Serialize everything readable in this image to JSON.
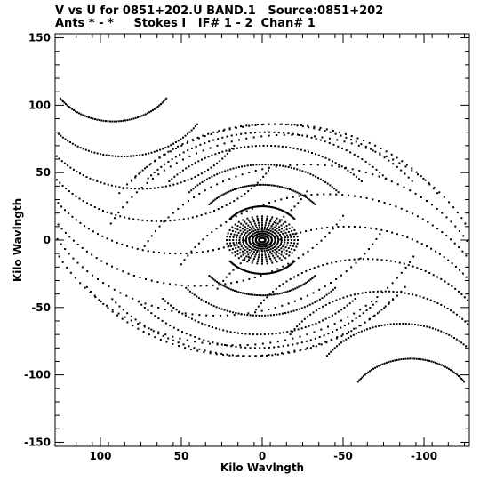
{
  "title_line1": "V vs U for 0851+202.U BAND.1   Source:0851+202",
  "title_line2": "Ants * - *     Stokes I   IF# 1 - 2  Chan# 1",
  "chart_data": {
    "type": "scatter",
    "xlabel": "Kilo Wavlngth",
    "ylabel": "Kilo Wavlngth",
    "xlim": [
      128,
      -128
    ],
    "ylim": [
      -153,
      153
    ],
    "x_reversed": true,
    "grid": false,
    "marker_color": "#000000",
    "xticks": [
      100,
      50,
      0,
      -50,
      -100
    ],
    "xtick_labels": [
      "100",
      "50",
      "0",
      "-50",
      "-100"
    ],
    "yticks": [
      150,
      100,
      50,
      0,
      -50,
      -100,
      -150
    ],
    "ytick_labels": [
      "150",
      "100",
      "50",
      "0",
      "-50",
      "-100",
      "-150"
    ],
    "tracks": [
      {
        "cx": 92,
        "cy": 128,
        "r": 40,
        "a1": 215,
        "a2": 325
      },
      {
        "cx": 86,
        "cy": 118,
        "r": 56,
        "a1": 215,
        "a2": 325
      },
      {
        "cx": 75,
        "cy": 106,
        "r": 68,
        "a1": 212,
        "a2": 328
      },
      {
        "cx": 64,
        "cy": 94,
        "r": 80,
        "a1": 212,
        "a2": 328
      },
      {
        "cx": 52,
        "cy": 82,
        "r": 92,
        "a1": 210,
        "a2": 330
      },
      {
        "cx": 40,
        "cy": 70,
        "r": 104,
        "a1": 210,
        "a2": 330
      },
      {
        "cx": 28,
        "cy": 58,
        "r": 114,
        "a1": 208,
        "a2": 332
      },
      {
        "cx": 16,
        "cy": 46,
        "r": 124,
        "a1": 208,
        "a2": 332
      },
      {
        "cx": 10,
        "cy": 34,
        "r": 120,
        "a1": 215,
        "a2": 325
      },
      {
        "cx": 6,
        "cy": 24,
        "r": 110,
        "a1": 218,
        "a2": 322
      },
      {
        "cx": 3,
        "cy": 16,
        "r": 96,
        "a1": 220,
        "a2": 320
      },
      {
        "cx": 2,
        "cy": 10,
        "r": 80,
        "a1": 222,
        "a2": 318
      },
      {
        "cx": 1,
        "cy": 6,
        "r": 62,
        "a1": 222,
        "a2": 318
      },
      {
        "cx": 0,
        "cy": 3,
        "r": 44,
        "a1": 222,
        "a2": 318
      },
      {
        "cx": 0,
        "cy": 1,
        "r": 26,
        "a1": 220,
        "a2": 320
      }
    ],
    "center_rays": {
      "count": 22,
      "max_length": 22,
      "points_per_ray": 11
    },
    "points_per_track": 58
  }
}
